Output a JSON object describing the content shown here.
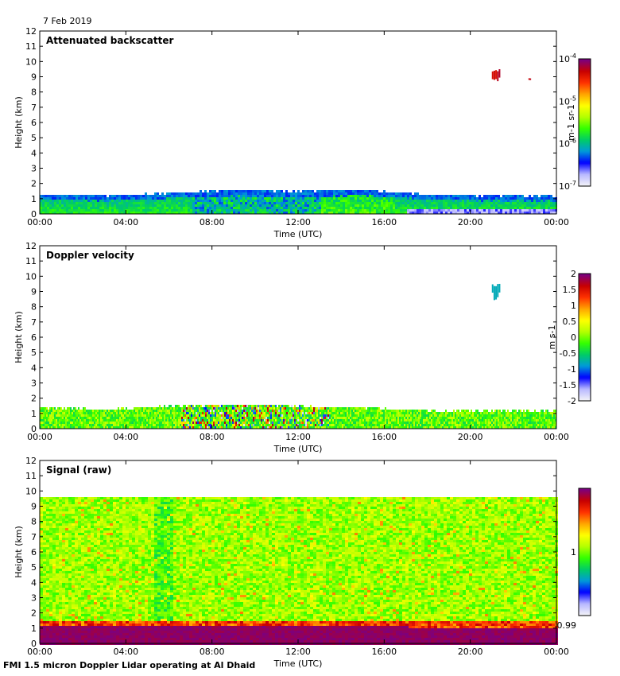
{
  "date": "7 Feb 2019",
  "footer": "FMI 1.5 micron Doppler Lidar operating at Al Dhaid",
  "colorbar_colors": [
    "#f2f2f8",
    "#b7b7ff",
    "#0000ff",
    "#009ad9",
    "#00cc66",
    "#33ff00",
    "#b3ff00",
    "#ffff00",
    "#ffa500",
    "#ff3300",
    "#c80000",
    "#7d007d"
  ],
  "chart_data": [
    {
      "type": "heatmap",
      "title": "Attenuated backscatter",
      "xlabel": "Time (UTC)",
      "ylabel": "Height (km)",
      "xlim": [
        0,
        24
      ],
      "ylim": [
        0,
        12
      ],
      "x_ticks": [
        "00:00",
        "04:00",
        "08:00",
        "12:00",
        "16:00",
        "20:00",
        "00:00"
      ],
      "y_ticks": [
        "0",
        "1",
        "2",
        "3",
        "4",
        "5",
        "6",
        "7",
        "8",
        "9",
        "10",
        "11",
        "12"
      ],
      "colorbar": {
        "label": "m-1 sr-1",
        "scale": "log",
        "range": [
          1e-07,
          0.0001
        ],
        "ticks": [
          {
            "base": "10",
            "exp": "-4",
            "frac": 1.0
          },
          {
            "base": "10",
            "exp": "-5",
            "frac": 0.6667
          },
          {
            "base": "10",
            "exp": "-6",
            "frac": 0.3333
          },
          {
            "base": "10",
            "exp": "-7",
            "frac": 0.0
          }
        ]
      },
      "features": [
        {
          "name": "boundary layer aerosol",
          "t_start": 0,
          "t_end": 24,
          "top_km": [
            1.2,
            1.1,
            1.3,
            1.5,
            1.4,
            1.5,
            1.2,
            1.1,
            1.1
          ],
          "level": "high"
        },
        {
          "name": "high thin cloud",
          "t_start": 21.0,
          "t_end": 21.4,
          "base_km": 8.8,
          "top_km": 9.5,
          "level": "very high"
        },
        {
          "name": "high thin cloud",
          "t_start": 22.7,
          "t_end": 22.8,
          "base_km": 8.9,
          "top_km": 9.0,
          "level": "very high"
        }
      ]
    },
    {
      "type": "heatmap",
      "title": "Doppler velocity",
      "xlabel": "Time (UTC)",
      "ylabel": "Height (km)",
      "xlim": [
        0,
        24
      ],
      "ylim": [
        0,
        12
      ],
      "x_ticks": [
        "00:00",
        "04:00",
        "08:00",
        "12:00",
        "16:00",
        "20:00",
        "00:00"
      ],
      "y_ticks": [
        "0",
        "1",
        "2",
        "3",
        "4",
        "5",
        "6",
        "7",
        "8",
        "9",
        "10",
        "11",
        "12"
      ],
      "colorbar": {
        "label": "m s-1",
        "scale": "linear",
        "range": [
          -2,
          2
        ],
        "ticks": [
          "2",
          "1.5",
          "1",
          "0.5",
          "0",
          "-0.5",
          "-1",
          "-1.5",
          "-2"
        ]
      },
      "features": [
        {
          "name": "boundary layer velocities",
          "t_start": 0,
          "t_end": 24,
          "top_km": [
            1.3,
            1.2,
            1.4,
            1.5,
            1.4,
            1.3,
            1.1,
            1.1,
            1.1
          ],
          "range_ms": [
            -1,
            0.5
          ]
        },
        {
          "name": "turbulent convective layer",
          "t_start": 6.5,
          "t_end": 13.5,
          "range_ms": [
            -2,
            2
          ]
        },
        {
          "name": "high cloud velocity",
          "t_start": 21.0,
          "t_end": 21.4,
          "value_ms": -0.6
        }
      ]
    },
    {
      "type": "heatmap",
      "title": "Signal (raw)",
      "xlabel": "Time (UTC)",
      "ylabel": "Height (km)",
      "xlim": [
        0,
        24
      ],
      "ylim": [
        0,
        12
      ],
      "x_ticks": [
        "00:00",
        "04:00",
        "08:00",
        "12:00",
        "16:00",
        "20:00",
        "00:00"
      ],
      "y_ticks": [
        "0",
        "1",
        "2",
        "3",
        "4",
        "5",
        "6",
        "7",
        "8",
        "9",
        "10",
        "11",
        "12"
      ],
      "colorbar": {
        "label": "",
        "scale": "linear",
        "range": [
          0.99,
          1.01
        ],
        "ticks": [
          {
            "label": "1",
            "frac": 0.5
          },
          {
            "label": "0.99",
            "frac": 0.0
          }
        ]
      },
      "features": [
        {
          "name": "noise field",
          "t_start": 0,
          "t_end": 24,
          "base_km": 1.5,
          "top_km": 9.6,
          "range": [
            0.998,
            1.002
          ]
        },
        {
          "name": "strong near-surface signal",
          "t_start": 0,
          "t_end": 24,
          "top_km": 1.0,
          "level": "max"
        }
      ]
    }
  ]
}
